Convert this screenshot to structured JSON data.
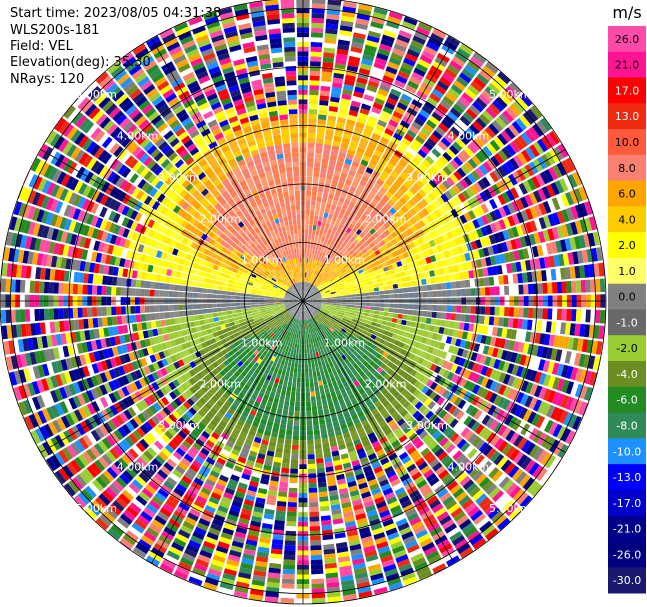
{
  "info": {
    "start_time": "Start time: 2023/08/05 04:31:38",
    "device": "WLS200s-181",
    "field": "Field: VEL",
    "elevation": "Elevation(deg): 35.30",
    "nrays": "NRays: 120"
  },
  "chart_data": {
    "type": "polar-ppi",
    "field": "VEL",
    "unit_label": "m/s",
    "range_rings_km": [
      1.0,
      2.0,
      3.0,
      4.0,
      5.0
    ],
    "ring_labels_right": [
      "1.00km",
      "2.00km",
      "3.00km",
      "4.00km",
      "5.00km"
    ],
    "ring_labels_left": [
      "1.00km",
      "2.00km",
      "3.00km",
      "4.00km",
      "5.00km"
    ],
    "max_range_km": 5.0,
    "n_rays": 120,
    "grid_spokes_deg": [
      0,
      30,
      60,
      90,
      120,
      150,
      180,
      210,
      240,
      270,
      300,
      330
    ],
    "colorbar": {
      "tick_labels": [
        "26.0",
        "21.0",
        "17.0",
        "13.0",
        "10.0",
        "8.0",
        "6.0",
        "4.0",
        "2.0",
        "1.0",
        "0.0",
        "-1.0",
        "-2.0",
        "-4.0",
        "-6.0",
        "-8.0",
        "-10.0",
        "-13.0",
        "-17.0",
        "-21.0",
        "-26.0",
        "-30.0"
      ],
      "colors": [
        "#ff4aa8",
        "#ff1493",
        "#ff0000",
        "#ee2b10",
        "#ff5a3c",
        "#fa8072",
        "#ffa500",
        "#ffcc00",
        "#ffff00",
        "#ffff66",
        "#808080",
        "#696969",
        "#9acd32",
        "#6b8e23",
        "#228b22",
        "#2e8b57",
        "#1e90ff",
        "#0000ff",
        "#0000cd",
        "#00008b",
        "#000080",
        "#191970"
      ]
    }
  }
}
